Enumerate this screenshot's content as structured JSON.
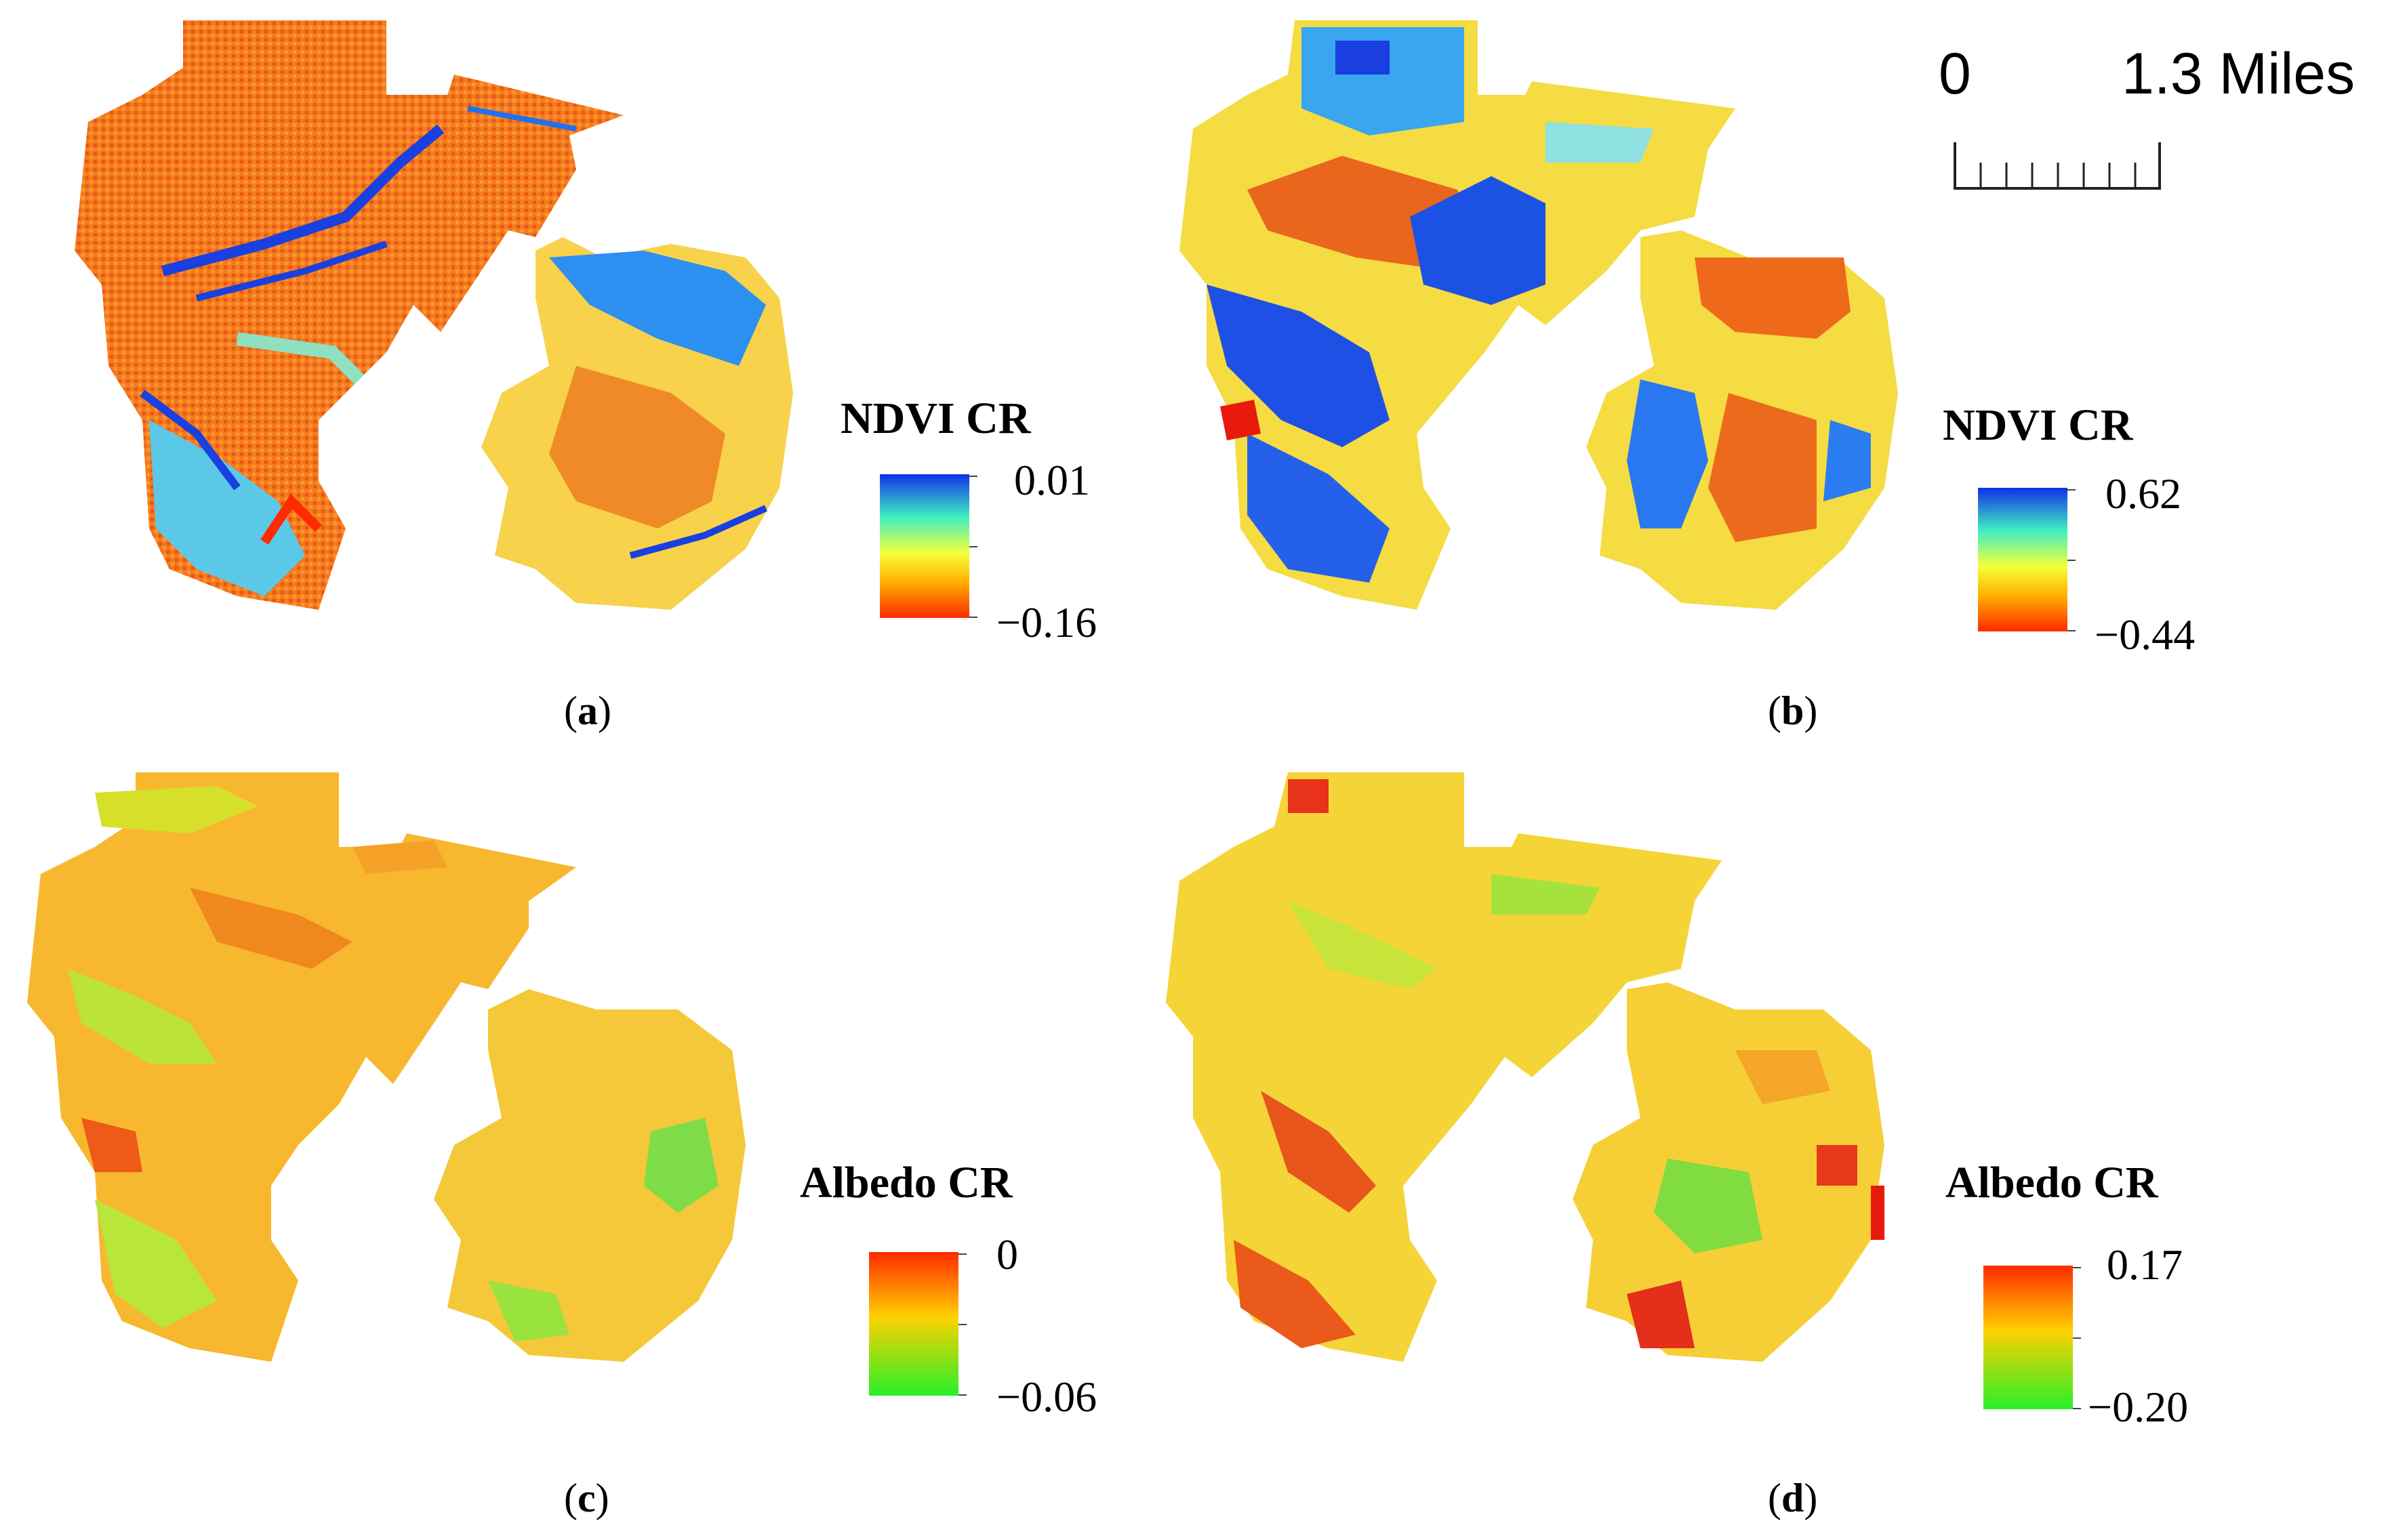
{
  "scale_bar": {
    "start_label": "0",
    "end_label": "1.3 Miles"
  },
  "panels": [
    {
      "id": "a",
      "caption_letter": "a",
      "legend_title": "NDVI CR",
      "legend_max": "0.01",
      "legend_min": "−0.16",
      "colormap": "red-yellow-green-cyan-blue",
      "colors": {
        "low": "#ff2a00",
        "mid1": "#ffb000",
        "mid2": "#f6ff3a",
        "mid3": "#40f0c0",
        "high": "#1030e8"
      },
      "dominant_color": "#f57f1f"
    },
    {
      "id": "b",
      "caption_letter": "b",
      "legend_title": "NDVI CR",
      "legend_max": "0.62",
      "legend_min": "−0.44",
      "colormap": "red-yellow-green-cyan-blue",
      "colors": {
        "low": "#ff2a00",
        "mid1": "#ffb000",
        "mid2": "#f6ff3a",
        "mid3": "#40f0c0",
        "high": "#1030e8"
      },
      "dominant_color": "#f3e53a"
    },
    {
      "id": "c",
      "caption_letter": "c",
      "legend_title": "Albedo CR",
      "legend_max": "0",
      "legend_min": "−0.06",
      "colormap": "red-orange-yellow-green",
      "colors": {
        "high": "#ff2a00",
        "mid": "#ffd000",
        "low": "#28f028"
      },
      "dominant_color": "#f8c12a"
    },
    {
      "id": "d",
      "caption_letter": "d",
      "legend_title": "Albedo CR",
      "legend_max": "0.17",
      "legend_min": "−0.20",
      "colormap": "red-orange-yellow-green",
      "colors": {
        "high": "#ff2a00",
        "mid": "#ffd000",
        "low": "#28f028"
      },
      "dominant_color": "#f5d93a"
    }
  ]
}
